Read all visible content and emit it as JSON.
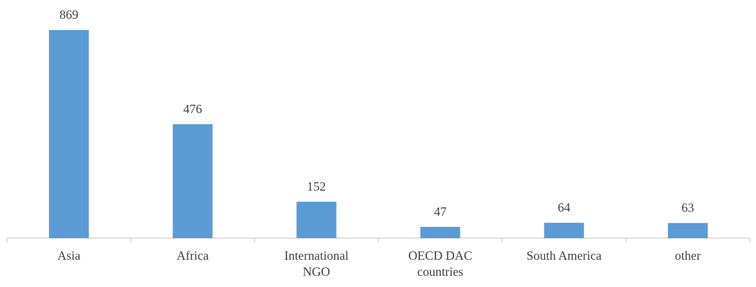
{
  "chart_data": {
    "type": "bar",
    "categories": [
      "Asia",
      "Africa",
      "International NGO",
      "OECD DAC countries",
      "South America",
      "other"
    ],
    "values": [
      869,
      476,
      152,
      47,
      64,
      63
    ],
    "color": "#5b9bd5"
  }
}
